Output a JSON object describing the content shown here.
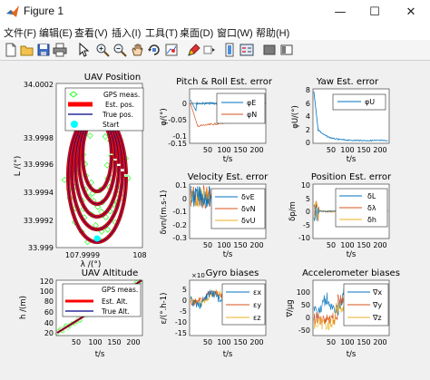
{
  "window": {
    "title": "Figure 1",
    "min_glyph": "—",
    "max_glyph": "☐",
    "close_glyph": "✕"
  },
  "menu": [
    {
      "label": "文件(F)"
    },
    {
      "label": "编辑(E)"
    },
    {
      "label": "查看(V)"
    },
    {
      "label": "插入(I)"
    },
    {
      "label": "工具(T)"
    },
    {
      "label": "桌面(D)"
    },
    {
      "label": "窗口(W)"
    },
    {
      "label": "帮助(H)"
    }
  ],
  "toolbar": {
    "icons": [
      "new-figure-icon",
      "open-file-icon",
      "save-icon",
      "print-icon",
      "pointer-icon",
      "zoom-in-icon",
      "zoom-out-icon",
      "pan-icon",
      "rotate-3d-icon",
      "data-cursor-icon",
      "brush-icon",
      "link-icon",
      "colorbar-icon",
      "legend-icon",
      "hide-plot-tools-icon",
      "show-plot-tools-icon"
    ]
  },
  "colors": {
    "gps": "#00ff00",
    "est": "#ff0000",
    "true": "#00008b",
    "start": "#00ffff",
    "s1": "#0072bd",
    "s2": "#d95319",
    "s3": "#edb120"
  },
  "plots": {
    "uav_position": {
      "title": "UAV Position",
      "ylabel": "L /(°)",
      "xlabel": "λ /(°)",
      "yticks": [
        "34.0002",
        "33.9998",
        "33.9996",
        "33.9994",
        "33.9992",
        "33.999"
      ],
      "xticks": [
        "107.9999",
        "108"
      ],
      "legend": [
        "GPS meas.",
        "Est. pos.",
        "True pos.",
        "Start"
      ]
    },
    "pitch_roll": {
      "title": "Pitch & Roll Est. error",
      "ylabel": "φ/(°)",
      "yticks": [
        "0",
        "-0.05",
        "-0.1",
        "-0.15"
      ],
      "xticks": [
        "50",
        "100",
        "150",
        "200"
      ],
      "legend": [
        "φE",
        "φN"
      ]
    },
    "yaw": {
      "title": "Yaw Est. error",
      "ylabel": "φU/(°)",
      "yticks": [
        "8",
        "6",
        "4",
        "2",
        "0"
      ],
      "xticks": [
        "50",
        "100",
        "150",
        "200"
      ],
      "legend": [
        "φU"
      ]
    },
    "velocity": {
      "title": "Velocity Est. error",
      "ylabel": "δvn/(m.s-1)",
      "yticks": [
        "0.1",
        "0",
        "-0.1",
        "-0.2",
        "-0.3"
      ],
      "xticks": [
        "50",
        "100",
        "150",
        "200"
      ],
      "legend": [
        "δvE",
        "δvN",
        "δvU"
      ]
    },
    "position": {
      "title": "Position Est. error",
      "ylabel": "δp/m",
      "yticks": [
        "10",
        "5",
        "0",
        "-5",
        "-10"
      ],
      "xticks": [
        "50",
        "100",
        "150",
        "200"
      ],
      "legend": [
        "δL",
        "δλ",
        "δh"
      ]
    },
    "altitude": {
      "title": "UAV Altitude",
      "ylabel": "h /(m)",
      "yticks": [
        "120",
        "100",
        "80",
        "60",
        "40",
        "20"
      ],
      "xticks": [
        "50",
        "100",
        "150",
        "200"
      ],
      "legend": [
        "GPS meas.",
        "Est. Alt.",
        "True Alt."
      ]
    },
    "gyro": {
      "title": "Gyro biases",
      "exponent": "×10",
      "ylabel": "ε/(°.h-1)",
      "yticks": [
        "5",
        "0",
        "-5",
        "-10",
        "-15"
      ],
      "xticks": [
        "50",
        "100",
        "150",
        "200"
      ],
      "legend": [
        "εx",
        "εy",
        "εz"
      ]
    },
    "accel": {
      "title": "Accelerometer biases",
      "ylabel": "∇/μg",
      "yticks": [
        "100",
        "50",
        "0",
        "-50"
      ],
      "xticks": [
        "50",
        "100",
        "150",
        "200"
      ],
      "legend": [
        "∇x",
        "∇y",
        "∇z"
      ]
    },
    "t_label": "t/s"
  }
}
